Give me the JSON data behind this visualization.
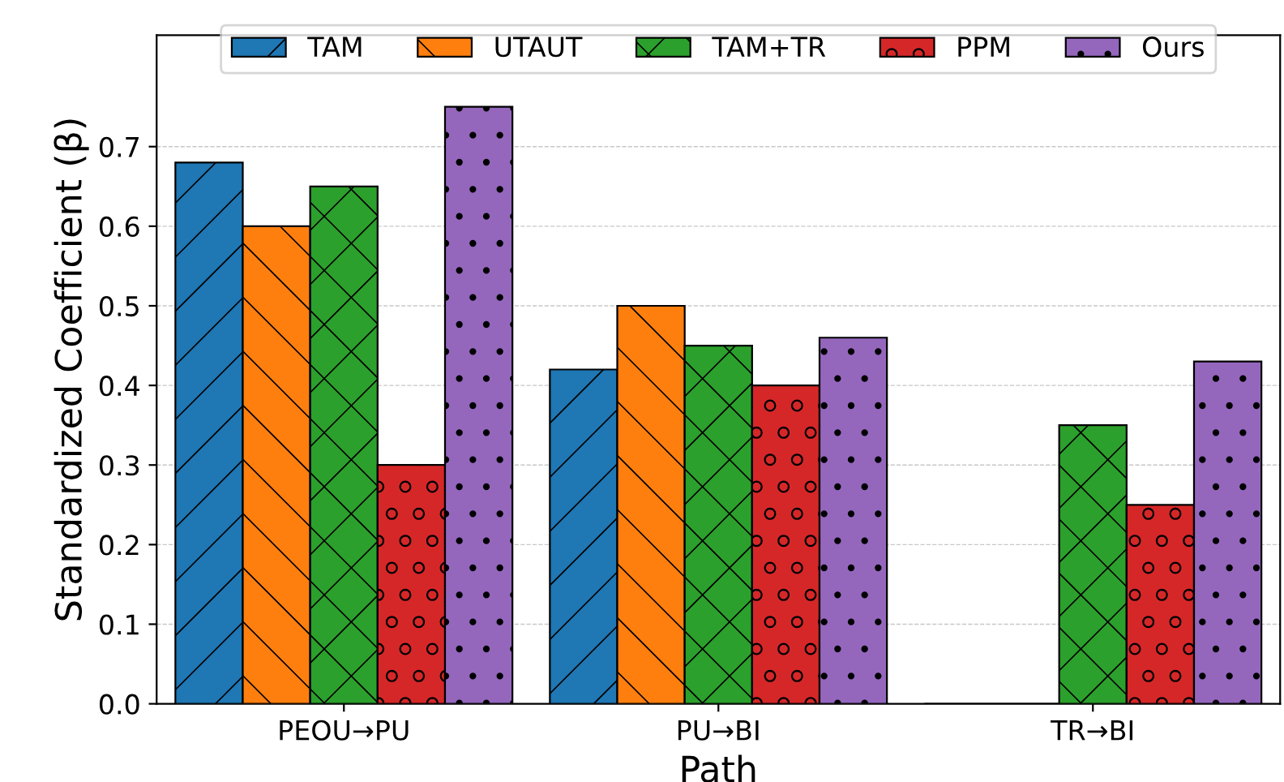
{
  "chart_data": {
    "type": "bar",
    "xlabel": "Path",
    "ylabel": "Standardized Coefficient (β)",
    "categories": [
      "PEOU→PU",
      "PU→BI",
      "TR→BI"
    ],
    "series": [
      {
        "name": "TAM",
        "color": "#1f77b4",
        "values": [
          0.68,
          0.42,
          0
        ]
      },
      {
        "name": "UTAUT",
        "color": "#ff7f0e",
        "values": [
          0.6,
          0.5,
          0
        ]
      },
      {
        "name": "TAM+TR",
        "color": "#2ca02c",
        "values": [
          0.65,
          0.45,
          0.35
        ]
      },
      {
        "name": "PPM",
        "color": "#d62728",
        "values": [
          0.3,
          0.4,
          0.25
        ]
      },
      {
        "name": "Ours",
        "color": "#9467bd",
        "values": [
          0.75,
          0.46,
          0.43
        ]
      }
    ],
    "ylim": [
      0,
      0.84
    ],
    "yticks": [
      {
        "value": 0,
        "label": "0.0"
      },
      0.1,
      0.2,
      0.3,
      0.4,
      0.5,
      0.6,
      0.7
    ],
    "grid": "y",
    "legend": "top"
  }
}
